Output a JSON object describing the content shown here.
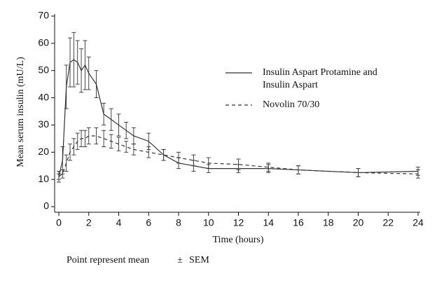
{
  "chart_data": {
    "type": "line",
    "x_label": "Time (hours)",
    "y_label": "Mean serum insulin (mU/L)",
    "x": [
      0,
      0.25,
      0.5,
      0.75,
      1,
      1.25,
      1.5,
      1.75,
      2,
      2.5,
      3,
      3.5,
      4,
      4.5,
      5,
      6,
      7,
      8,
      9,
      10,
      12,
      14,
      16,
      20,
      24
    ],
    "series": [
      {
        "name": "Insulin Aspart Protamine and Insulin Aspart",
        "color": "#333333",
        "dash": "solid",
        "values": [
          11,
          17,
          44,
          53,
          54,
          53,
          50,
          52,
          49,
          45,
          34,
          32,
          30,
          28,
          26,
          24,
          19,
          16,
          15,
          14,
          14,
          14,
          13.5,
          12.5,
          13
        ],
        "errors": [
          2,
          5,
          8,
          9,
          10,
          8,
          8,
          9,
          6,
          5,
          4,
          4,
          4,
          3,
          3,
          3,
          2,
          2,
          2,
          1.5,
          1.5,
          1.5,
          1.5,
          1.5,
          1.5
        ]
      },
      {
        "name": "Novolin 70/30",
        "color": "#333333",
        "dash": "dashed",
        "values": [
          11,
          12,
          16,
          20,
          22,
          24,
          25,
          25,
          26,
          26,
          25,
          24,
          23,
          22,
          21,
          20,
          19,
          18,
          17,
          16,
          15.5,
          14.5,
          13.5,
          12.5,
          12
        ],
        "errors": [
          1,
          1.5,
          3,
          3,
          3,
          3,
          3,
          3,
          3,
          3,
          3,
          2.5,
          2.5,
          2,
          2,
          2,
          2,
          2,
          2,
          2,
          2,
          1.5,
          1.5,
          1.5,
          1.5
        ]
      }
    ],
    "xlim": [
      0,
      24
    ],
    "xticks": [
      0,
      2,
      4,
      6,
      8,
      10,
      12,
      14,
      16,
      18,
      20,
      22,
      24
    ],
    "ylim": [
      0,
      70
    ],
    "yticks": [
      0,
      10,
      20,
      30,
      40,
      50,
      60,
      70
    ],
    "footnote": [
      "Point represent mean",
      "±",
      "SEM"
    ]
  }
}
